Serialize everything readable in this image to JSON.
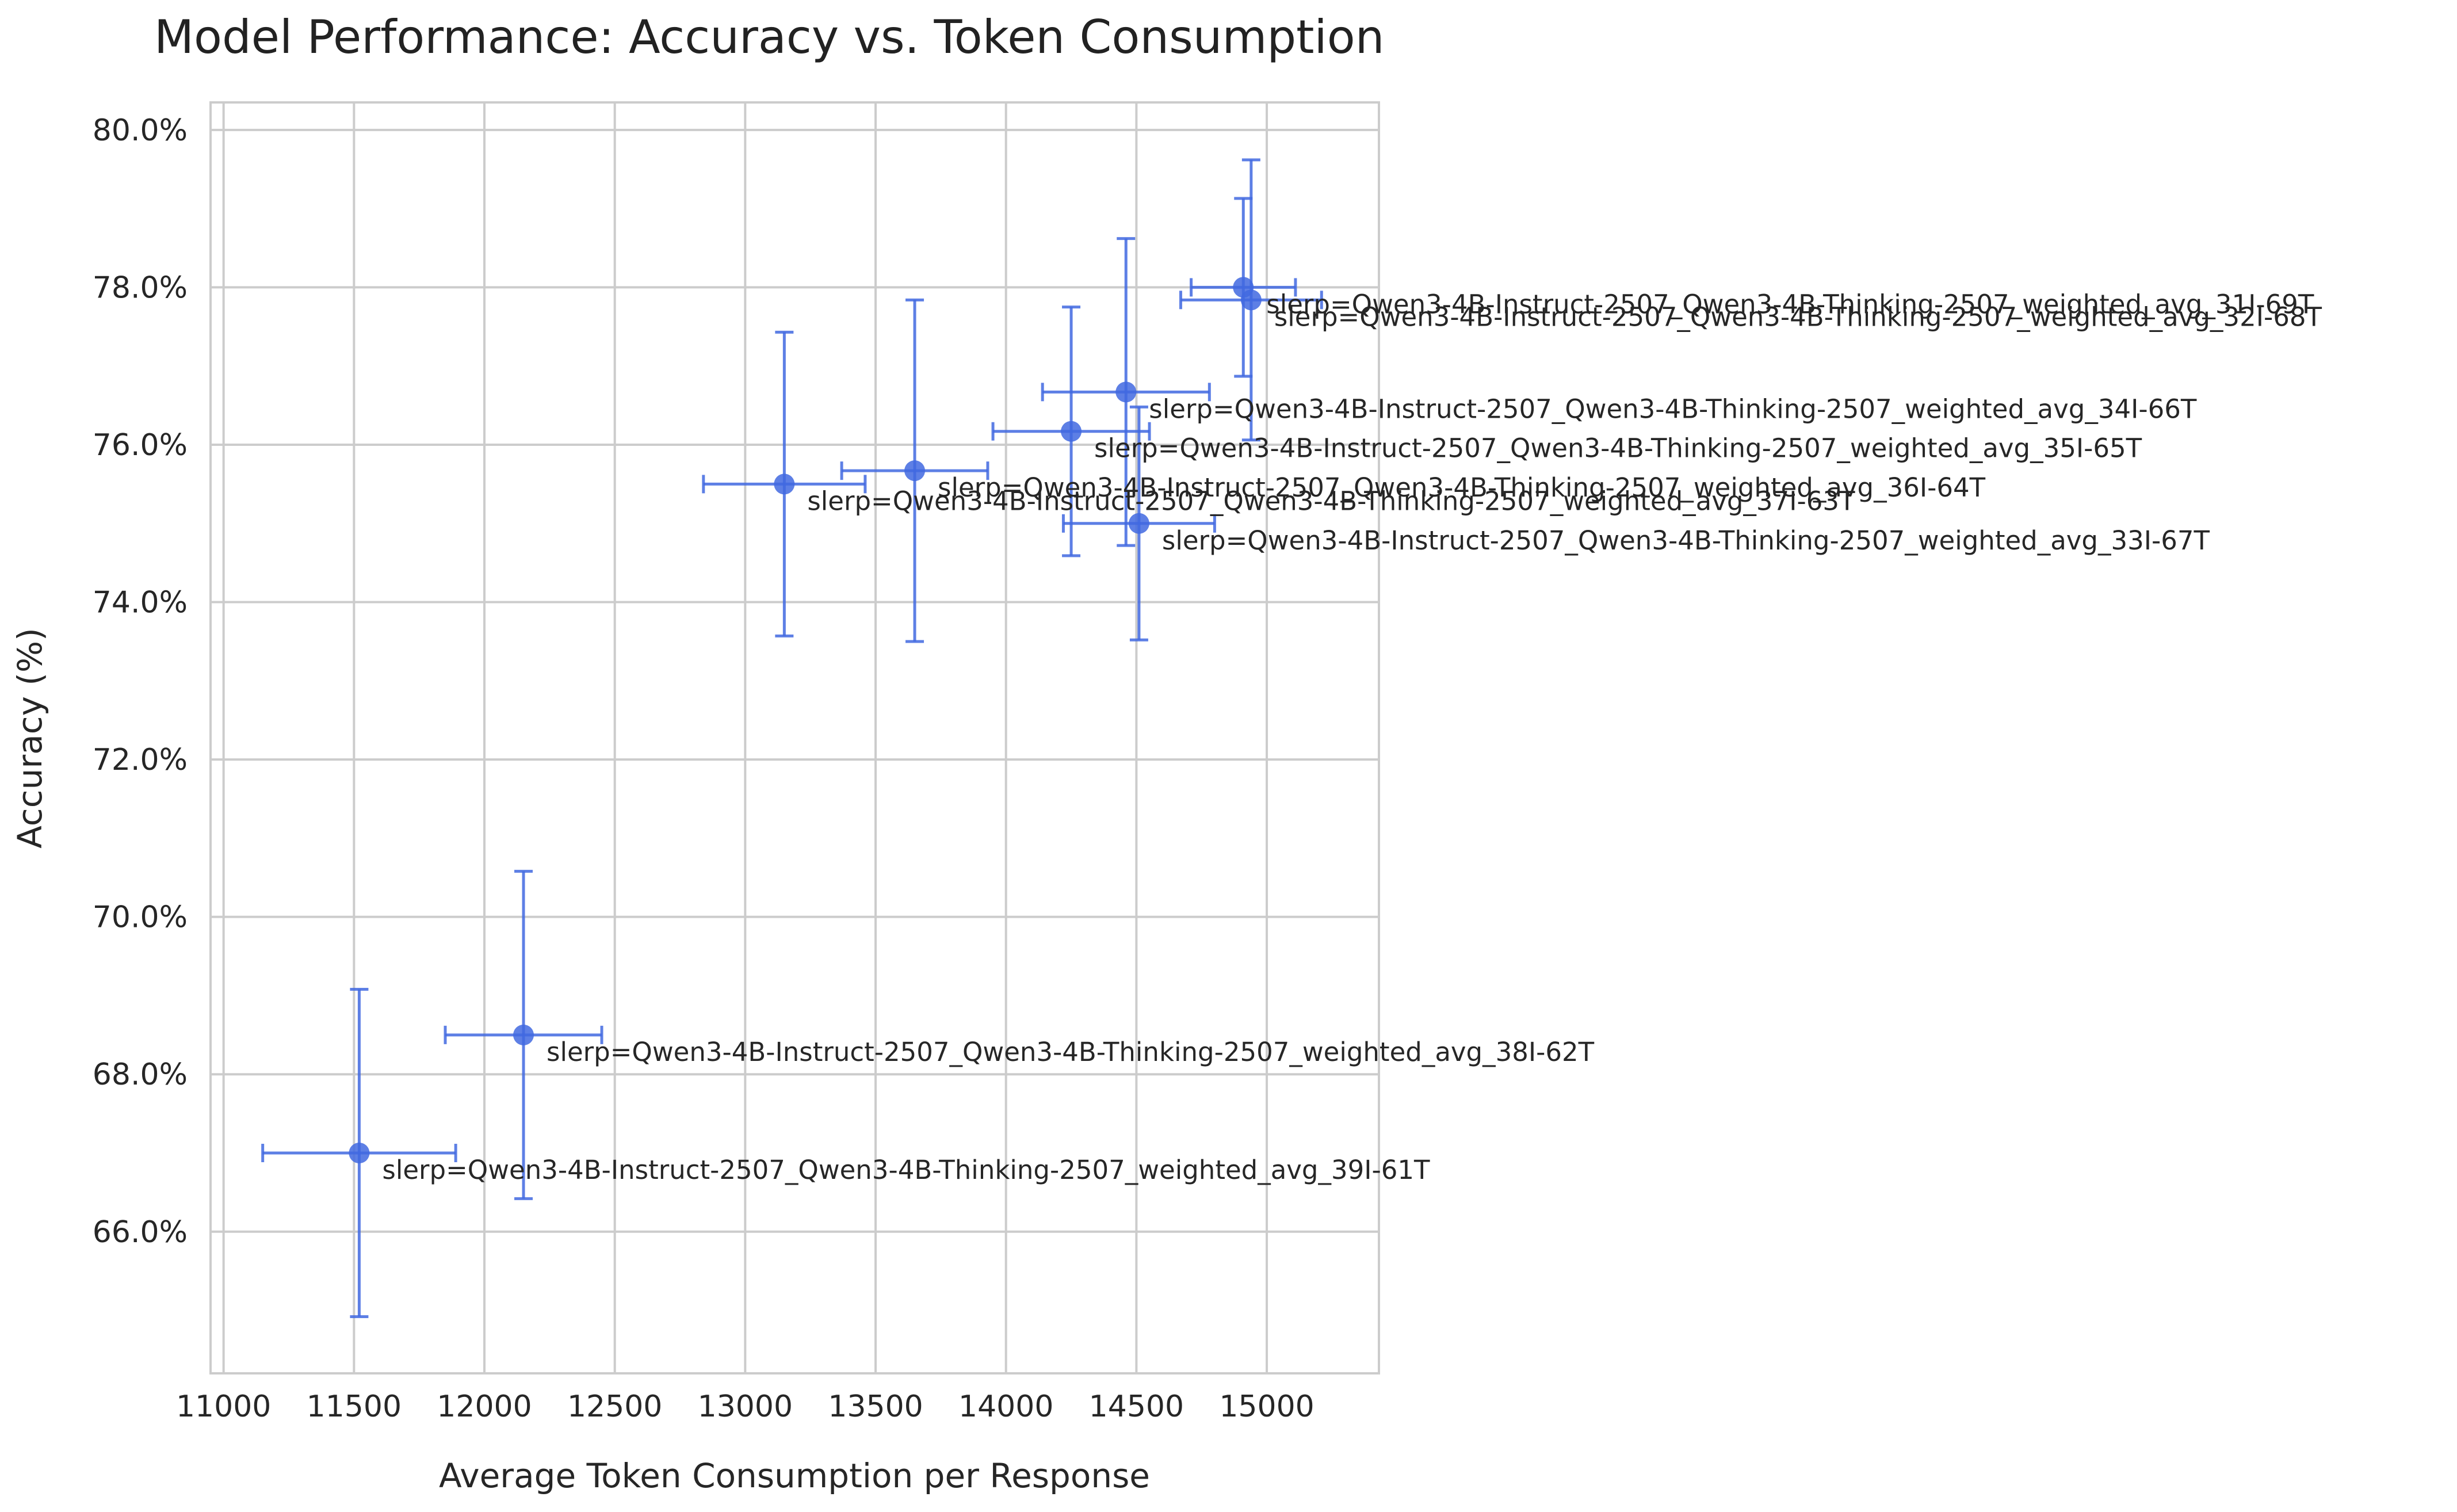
{
  "chart_data": {
    "type": "scatter",
    "title": "Model Performance: Accuracy vs. Token Consumption",
    "xlabel": "Average Token Consumption per Response",
    "ylabel": "Accuracy (%)",
    "xlim": [
      10950,
      15430
    ],
    "ylim": [
      64.2,
      80.35
    ],
    "xticks": [
      11000,
      11500,
      12000,
      12500,
      13000,
      13500,
      14000,
      14500,
      15000
    ],
    "yticks": [
      66,
      68,
      70,
      72,
      74,
      76,
      78,
      80
    ],
    "ytick_format": "percent_1dp",
    "grid": true,
    "legend": "none",
    "colors": {
      "marker": "#4169e1",
      "grid": "#cccccc",
      "axis": "#cccccc",
      "text": "#262626"
    },
    "points": [
      {
        "label": "slerp=Qwen3-4B-Instruct-2507_Qwen3-4B-Thinking-2507_weighted_avg_31I-69T",
        "x": 14910,
        "y": 78.0,
        "xerr": 200,
        "yerr": 1.13
      },
      {
        "label": "slerp=Qwen3-4B-Instruct-2507_Qwen3-4B-Thinking-2507_weighted_avg_32I-68T",
        "x": 14940,
        "y": 77.84,
        "xerr": 270,
        "yerr": 1.78
      },
      {
        "label": "slerp=Qwen3-4B-Instruct-2507_Qwen3-4B-Thinking-2507_weighted_avg_33I-67T",
        "x": 14510,
        "y": 75.0,
        "xerr": 290,
        "yerr": 1.48
      },
      {
        "label": "slerp=Qwen3-4B-Instruct-2507_Qwen3-4B-Thinking-2507_weighted_avg_34I-66T",
        "x": 14460,
        "y": 76.67,
        "xerr": 320,
        "yerr": 1.95
      },
      {
        "label": "slerp=Qwen3-4B-Instruct-2507_Qwen3-4B-Thinking-2507_weighted_avg_35I-65T",
        "x": 14250,
        "y": 76.17,
        "xerr": 300,
        "yerr": 1.58
      },
      {
        "label": "slerp=Qwen3-4B-Instruct-2507_Qwen3-4B-Thinking-2507_weighted_avg_36I-64T",
        "x": 13650,
        "y": 75.67,
        "xerr": 280,
        "yerr": 2.17
      },
      {
        "label": "slerp=Qwen3-4B-Instruct-2507_Qwen3-4B-Thinking-2507_weighted_avg_37I-63T",
        "x": 13150,
        "y": 75.5,
        "xerr": 310,
        "yerr": 1.93
      },
      {
        "label": "slerp=Qwen3-4B-Instruct-2507_Qwen3-4B-Thinking-2507_weighted_avg_38I-62T",
        "x": 12150,
        "y": 68.5,
        "xerr": 300,
        "yerr": 2.08
      },
      {
        "label": "slerp=Qwen3-4B-Instruct-2507_Qwen3-4B-Thinking-2507_weighted_avg_39I-61T",
        "x": 11520,
        "y": 67.0,
        "xerr": 370,
        "yerr": 2.08
      }
    ]
  }
}
